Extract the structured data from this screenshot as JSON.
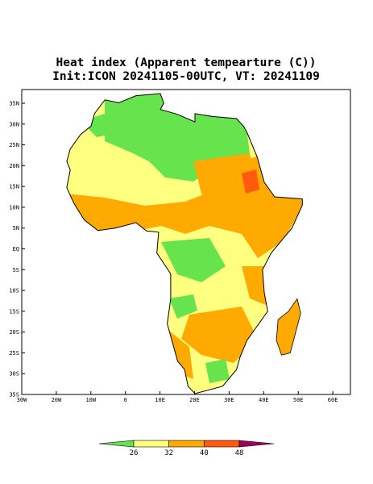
{
  "title": [
    "Heat index (Apparent tempearture (C))",
    "Init:ICON 20241105-00UTC, VT: 20241109"
  ],
  "map": {
    "xlim": [
      -30,
      65.1
    ],
    "ylim": [
      -35,
      38.3
    ],
    "xticks": [
      {
        "value": -30,
        "label": "30W"
      },
      {
        "value": -20,
        "label": "20W"
      },
      {
        "value": -10,
        "label": "10W"
      },
      0,
      {
        "value": 10,
        "label": "10E"
      },
      {
        "value": 20,
        "label": "20E"
      },
      {
        "value": 30,
        "label": "30E"
      },
      {
        "value": 40,
        "label": "40E"
      },
      {
        "value": 50,
        "label": "50E"
      },
      {
        "value": 60,
        "label": "60E"
      }
    ],
    "yticks": [
      {
        "value": -35,
        "label": "35S"
      },
      {
        "value": -30,
        "label": "30S"
      },
      {
        "value": -25,
        "label": "25S"
      },
      {
        "value": -20,
        "label": "20S"
      },
      {
        "value": -15,
        "label": "15S"
      },
      {
        "value": -10,
        "label": "10S"
      },
      {
        "value": -5,
        "label": "5S"
      },
      {
        "value": 0,
        "label": "EQ"
      },
      {
        "value": 5,
        "label": "5N"
      },
      {
        "value": 10,
        "label": "10N"
      },
      {
        "value": 15,
        "label": "15N"
      },
      {
        "value": 20,
        "label": "20N"
      },
      {
        "value": 25,
        "label": "25N"
      },
      {
        "value": 30,
        "label": "30N"
      },
      {
        "value": 35,
        "label": "35N"
      }
    ]
  },
  "colorbar": {
    "ticks": [
      26,
      32,
      40,
      48
    ],
    "colors": [
      "#66e34d",
      "#ffff80",
      "#ffaa00",
      "#ff5a10",
      "#a0005a"
    ]
  }
}
